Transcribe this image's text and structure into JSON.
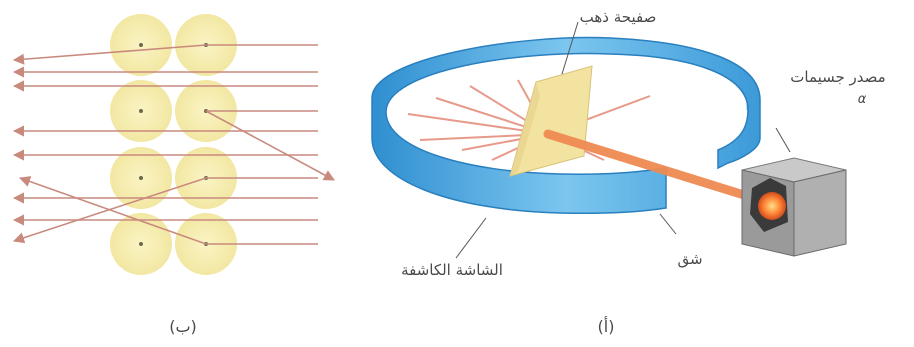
{
  "figure_b": {
    "caption": "(ب)",
    "colors": {
      "atom": "#f7efb0",
      "nucleus": "#6a6a4a",
      "ray": "#c98a7e"
    }
  },
  "figure_a": {
    "caption": "(أ)",
    "labels": {
      "gold_foil": "صفيحة ذهب",
      "particle_source": "مصدر جسيمات",
      "alpha": "α",
      "slit": "شق",
      "detector_screen": "الشاشة الكاشفة"
    },
    "colors": {
      "screen": "#4aa8e0",
      "foil": "#f3e3a0",
      "beam": "#ef8a52",
      "box": "#9a9a9a"
    }
  }
}
